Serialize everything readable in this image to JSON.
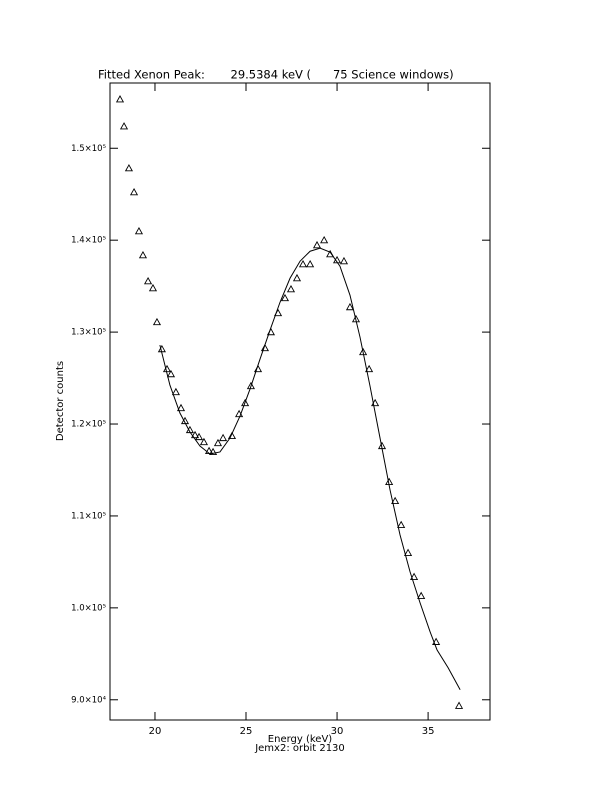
{
  "chart_data": {
    "type": "scatter",
    "title": "Fitted Xenon Peak:       29.5384 keV (      75 Science windows)",
    "x_label": "Energy (keV)",
    "y_label": "Detector counts",
    "caption": "Jemx2: orbit 2130",
    "xlim": [
      17.53,
      38.4
    ],
    "ylim": [
      87800,
      157100
    ],
    "xticks": [
      20,
      25,
      30,
      35
    ],
    "yticks": [
      {
        "value": 90000,
        "label": "9.0×10⁴"
      },
      {
        "value": 100000,
        "label": "1.0×10⁵"
      },
      {
        "value": 110000,
        "label": "1.1×10⁵"
      },
      {
        "value": 120000,
        "label": "1.2×10⁵"
      },
      {
        "value": 130000,
        "label": "1.3×10⁵"
      },
      {
        "value": 140000,
        "label": "1.4×10⁵"
      },
      {
        "value": 150000,
        "label": "1.5×10⁵"
      }
    ],
    "grid": false,
    "series": [
      {
        "type": "scatter",
        "marker": "triangle",
        "color": "#000000",
        "x": [
          18.08,
          18.3,
          18.57,
          18.85,
          19.12,
          19.34,
          19.62,
          19.89,
          20.11,
          20.38,
          20.66,
          20.88,
          21.15,
          21.43,
          21.65,
          21.92,
          22.2,
          22.42,
          22.69,
          22.97,
          23.19,
          23.46,
          23.74,
          24.23,
          24.62,
          24.95,
          25.27,
          25.66,
          26.04,
          26.37,
          26.76,
          27.14,
          27.47,
          27.8,
          28.13,
          28.52,
          28.9,
          29.29,
          29.62,
          30.0,
          30.38,
          30.71,
          31.04,
          31.43,
          31.76,
          32.09,
          32.47,
          32.86,
          33.19,
          33.52,
          33.9,
          34.23,
          34.62,
          35.44,
          36.7
        ],
        "values": [
          155330,
          152390,
          147830,
          145220,
          140980,
          138370,
          135540,
          134780,
          131090,
          128150,
          125980,
          125430,
          123480,
          121740,
          120330,
          119350,
          118800,
          118590,
          118040,
          117070,
          116960,
          117930,
          118480,
          118700,
          121090,
          122280,
          124130,
          125980,
          128260,
          130000,
          132070,
          133700,
          134670,
          135870,
          137390,
          137390,
          139460,
          140000,
          138480,
          137830,
          137720,
          132720,
          131410,
          127830,
          125980,
          122280,
          117610,
          113700,
          111630,
          109020,
          105980,
          103370,
          101300,
          96300,
          89350
        ]
      },
      {
        "type": "line",
        "color": "#000000",
        "x": [
          20.27,
          20.82,
          21.37,
          21.92,
          22.47,
          23.02,
          23.57,
          24.12,
          24.67,
          25.22,
          25.77,
          26.32,
          26.87,
          27.42,
          27.97,
          28.52,
          29.07,
          29.62,
          30.16,
          30.71,
          31.26,
          31.81,
          32.36,
          32.91,
          33.46,
          34.01,
          34.56,
          35.11,
          35.49,
          36.1,
          36.76
        ],
        "values": [
          128590,
          124240,
          121200,
          119130,
          117610,
          116740,
          116960,
          118480,
          120870,
          123800,
          127070,
          130220,
          133260,
          135870,
          137720,
          138800,
          139130,
          138700,
          137170,
          134020,
          129460,
          124130,
          118480,
          112830,
          107930,
          103910,
          100540,
          97390,
          95430,
          93480,
          91090
        ]
      }
    ]
  }
}
